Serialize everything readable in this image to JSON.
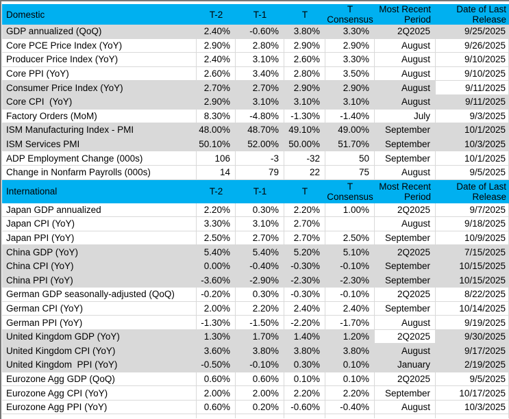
{
  "style": {
    "header_background": "#00B0F0",
    "shaded_row_background": "#D9D9D9",
    "gridline_color": "#D9D9D9",
    "text_color": "#000000"
  },
  "chart_data": {
    "type": "table",
    "columns": [
      "",
      "T-2",
      "T-1",
      "T",
      "T Consensus",
      "Most Recent Period",
      "Date of Last Release"
    ],
    "sections": [
      {
        "header": "Domestic",
        "shaded_rows": [
          0,
          4,
          5,
          7,
          8
        ],
        "white_cells": [
          [
            4,
            6
          ]
        ],
        "rows": [
          [
            "GDP annualized (QoQ)",
            "2.40%",
            "-0.60%",
            "3.80%",
            "3.30%",
            "2Q2025",
            "9/25/2025"
          ],
          [
            "Core PCE Price Index (YoY)",
            "2.90%",
            "2.80%",
            "2.90%",
            "2.90%",
            "August",
            "9/26/2025"
          ],
          [
            "Producer Price Index (YoY)",
            "2.40%",
            "3.10%",
            "2.60%",
            "3.30%",
            "August",
            "9/10/2025"
          ],
          [
            "Core PPI (YoY)",
            "2.60%",
            "3.40%",
            "2.80%",
            "3.50%",
            "August",
            "9/10/2025"
          ],
          [
            "Consumer Price Index (YoY)",
            "2.70%",
            "2.70%",
            "2.90%",
            "2.90%",
            "August",
            "9/11/2025"
          ],
          [
            "Core CPI  (YoY)",
            "2.90%",
            "3.10%",
            "3.10%",
            "3.10%",
            "August",
            "9/11/2025"
          ],
          [
            "Factory Orders (MoM)",
            "8.30%",
            "-4.80%",
            "-1.30%",
            "-1.40%",
            "July",
            "9/3/2025"
          ],
          [
            "ISM Manufacturing Index - PMI",
            "48.00%",
            "48.70%",
            "49.10%",
            "49.00%",
            "September",
            "10/1/2025"
          ],
          [
            "ISM Services PMI",
            "50.10%",
            "52.00%",
            "50.00%",
            "51.70%",
            "September",
            "10/3/2025"
          ],
          [
            "ADP Employment Change (000s)",
            "106",
            "-3",
            "-32",
            "50",
            "September",
            "10/1/2025"
          ],
          [
            "Change in Nonfarm Payrolls (000s)",
            "14",
            "79",
            "22",
            "75",
            "August",
            "9/5/2025"
          ]
        ]
      },
      {
        "header": "International",
        "shaded_rows": [
          3,
          4,
          5,
          9,
          10,
          11
        ],
        "white_cells": [
          [
            9,
            5
          ]
        ],
        "rows": [
          [
            "Japan GDP annualized",
            "2.20%",
            "0.30%",
            "2.20%",
            "1.00%",
            "2Q2025",
            "9/7/2025"
          ],
          [
            "Japan CPI (YoY)",
            "3.30%",
            "3.10%",
            "2.70%",
            "",
            "August",
            "9/18/2025"
          ],
          [
            "Japan PPI (YoY)",
            "2.50%",
            "2.70%",
            "2.70%",
            "2.50%",
            "September",
            "10/9/2025"
          ],
          [
            "China GDP (YoY)",
            "5.40%",
            "5.40%",
            "5.20%",
            "5.10%",
            "2Q2025",
            "7/15/2025"
          ],
          [
            "China CPI (YoY)",
            "0.00%",
            "-0.40%",
            "-0.30%",
            "-0.10%",
            "September",
            "10/15/2025"
          ],
          [
            "China PPI (YoY)",
            "-3.60%",
            "-2.90%",
            "-2.30%",
            "-2.30%",
            "September",
            "10/15/2025"
          ],
          [
            "German GDP seasonally-adjusted (QoQ)",
            "-0.20%",
            "0.30%",
            "-0.30%",
            "-0.10%",
            "2Q2025",
            "8/22/2025"
          ],
          [
            "German CPI (YoY)",
            "2.00%",
            "2.20%",
            "2.40%",
            "2.40%",
            "September",
            "10/14/2025"
          ],
          [
            "German PPI (YoY)",
            "-1.30%",
            "-1.50%",
            "-2.20%",
            "-1.70%",
            "August",
            "9/19/2025"
          ],
          [
            "United Kingdom GDP (YoY)",
            "1.30%",
            "1.70%",
            "1.40%",
            "1.20%",
            "2Q2025",
            "9/30/2025"
          ],
          [
            "United Kingdom CPI (YoY)",
            "3.60%",
            "3.80%",
            "3.80%",
            "3.80%",
            "August",
            "9/17/2025"
          ],
          [
            "United Kingdom  PPI (YoY)",
            "-0.50%",
            "-0.10%",
            "0.30%",
            "0.10%",
            "January",
            "2/19/2025"
          ],
          [
            "Eurozone Agg GDP (QoQ)",
            "0.60%",
            "0.60%",
            "0.10%",
            "0.10%",
            "2Q2025",
            "9/5/2025"
          ],
          [
            "Eurozone Agg CPI (YoY)",
            "2.00%",
            "2.00%",
            "2.20%",
            "2.20%",
            "September",
            "10/17/2025"
          ],
          [
            "Eurozone Agg PPI (YoY)",
            "0.60%",
            "0.20%",
            "-0.60%",
            "-0.40%",
            "August",
            "10/3/2025"
          ]
        ]
      }
    ]
  }
}
